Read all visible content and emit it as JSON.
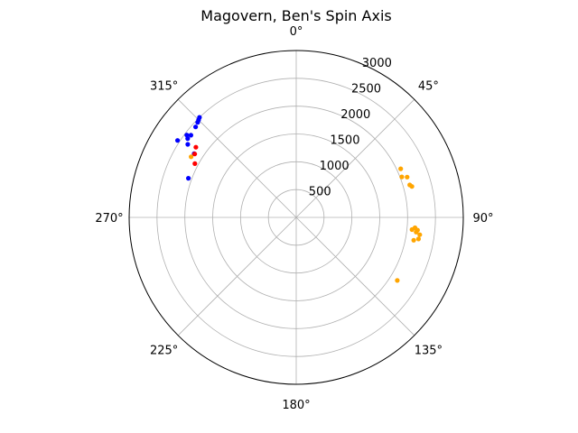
{
  "chart_data": {
    "type": "scatter",
    "projection": "polar",
    "title": "Magovern, Ben's Spin Axis",
    "theta_zero": "top",
    "theta_direction": "clockwise",
    "angle_ticks": [
      {
        "deg": 0,
        "label": "0°"
      },
      {
        "deg": 45,
        "label": "45°"
      },
      {
        "deg": 90,
        "label": "90°"
      },
      {
        "deg": 135,
        "label": "135°"
      },
      {
        "deg": 180,
        "label": "180°"
      },
      {
        "deg": 225,
        "label": "225°"
      },
      {
        "deg": 270,
        "label": "270°"
      },
      {
        "deg": 315,
        "label": "315°"
      }
    ],
    "radial_ticks": [
      {
        "value": 500,
        "label": "500"
      },
      {
        "value": 1000,
        "label": "1000"
      },
      {
        "value": 1500,
        "label": "1500"
      },
      {
        "value": 2000,
        "label": "2000"
      },
      {
        "value": 2500,
        "label": "2500"
      },
      {
        "value": 3000,
        "label": "3000"
      }
    ],
    "rlim": [
      0,
      3000
    ],
    "grid": true,
    "series": [
      {
        "color": "#0000ff",
        "points": [
          {
            "theta": 314,
            "r": 2460
          },
          {
            "theta": 315,
            "r": 2480
          },
          {
            "theta": 316,
            "r": 2500
          },
          {
            "theta": 312,
            "r": 2430
          },
          {
            "theta": 308,
            "r": 2400
          },
          {
            "theta": 307,
            "r": 2460
          },
          {
            "theta": 306,
            "r": 2410
          },
          {
            "theta": 303,
            "r": 2540
          },
          {
            "theta": 304,
            "r": 2350
          },
          {
            "theta": 302,
            "r": 2160
          },
          {
            "theta": 290,
            "r": 2060
          }
        ]
      },
      {
        "color": "#ff0000",
        "points": [
          {
            "theta": 305,
            "r": 2200
          },
          {
            "theta": 302,
            "r": 2150
          },
          {
            "theta": 298,
            "r": 2060
          }
        ]
      },
      {
        "color": "#ffa500",
        "points": [
          {
            "theta": 300,
            "r": 2180
          },
          {
            "theta": 65,
            "r": 2070
          },
          {
            "theta": 69,
            "r": 2030
          },
          {
            "theta": 70,
            "r": 2120
          },
          {
            "theta": 74,
            "r": 2120
          },
          {
            "theta": 75,
            "r": 2150
          },
          {
            "theta": 95,
            "r": 2140
          },
          {
            "theta": 96,
            "r": 2190
          },
          {
            "theta": 96,
            "r": 2090
          },
          {
            "theta": 97,
            "r": 2170
          },
          {
            "theta": 98,
            "r": 2240
          },
          {
            "theta": 100,
            "r": 2230
          },
          {
            "theta": 101,
            "r": 2150
          },
          {
            "theta": 122,
            "r": 2140
          }
        ]
      }
    ]
  }
}
